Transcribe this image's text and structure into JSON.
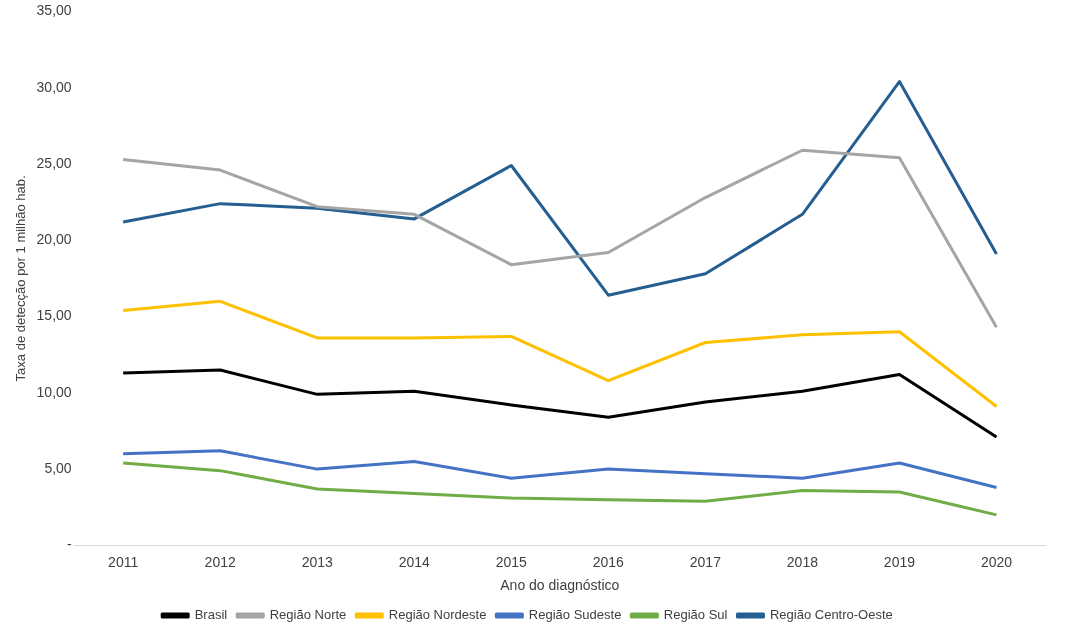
{
  "chart_data": {
    "type": "line",
    "xlabel": "Ano do diagnóstico",
    "ylabel": "Taxa de detecção por 1 milhão hab.",
    "categories": [
      "2011",
      "2012",
      "2013",
      "2014",
      "2015",
      "2016",
      "2017",
      "2018",
      "2019",
      "2020"
    ],
    "series": [
      {
        "name": "Brasil",
        "color": "#000000",
        "values": [
          11.3,
          11.5,
          9.9,
          10.1,
          9.2,
          8.4,
          9.4,
          10.1,
          11.2,
          7.1
        ]
      },
      {
        "name": "Região Norte",
        "color": "#a5a5a5",
        "values": [
          25.3,
          24.6,
          22.2,
          21.7,
          18.4,
          19.2,
          22.8,
          25.9,
          25.4,
          14.3
        ]
      },
      {
        "name": "Região Nordeste",
        "color": "#ffc000",
        "values": [
          15.4,
          16.0,
          13.6,
          13.6,
          13.7,
          10.8,
          13.3,
          13.8,
          14.0,
          9.1
        ]
      },
      {
        "name": "Região Sudeste",
        "color": "#4472c4",
        "values": [
          6.0,
          6.2,
          5.0,
          5.5,
          4.4,
          5.0,
          4.7,
          4.4,
          5.4,
          3.8
        ]
      },
      {
        "name": "Região Sul",
        "color": "#70ad47",
        "values": [
          5.4,
          4.9,
          3.7,
          3.4,
          3.1,
          3.0,
          2.9,
          3.6,
          3.5,
          2.0
        ]
      },
      {
        "name": "Região Centro-Oeste",
        "color": "#255e91",
        "values": [
          21.2,
          22.4,
          22.1,
          21.4,
          24.9,
          16.4,
          17.8,
          21.7,
          30.4,
          19.1
        ]
      }
    ],
    "ylim": [
      0,
      35
    ],
    "yticks": [
      {
        "value": 0,
        "label": "-"
      },
      {
        "value": 5,
        "label": "5,00"
      },
      {
        "value": 10,
        "label": "10,00"
      },
      {
        "value": 15,
        "label": "15,00"
      },
      {
        "value": 20,
        "label": "20,00"
      },
      {
        "value": 25,
        "label": "25,00"
      },
      {
        "value": 30,
        "label": "30,00"
      },
      {
        "value": 35,
        "label": "35,00"
      }
    ],
    "grid": false,
    "legend": "bottom",
    "marker": "none",
    "line_style": "solid"
  }
}
